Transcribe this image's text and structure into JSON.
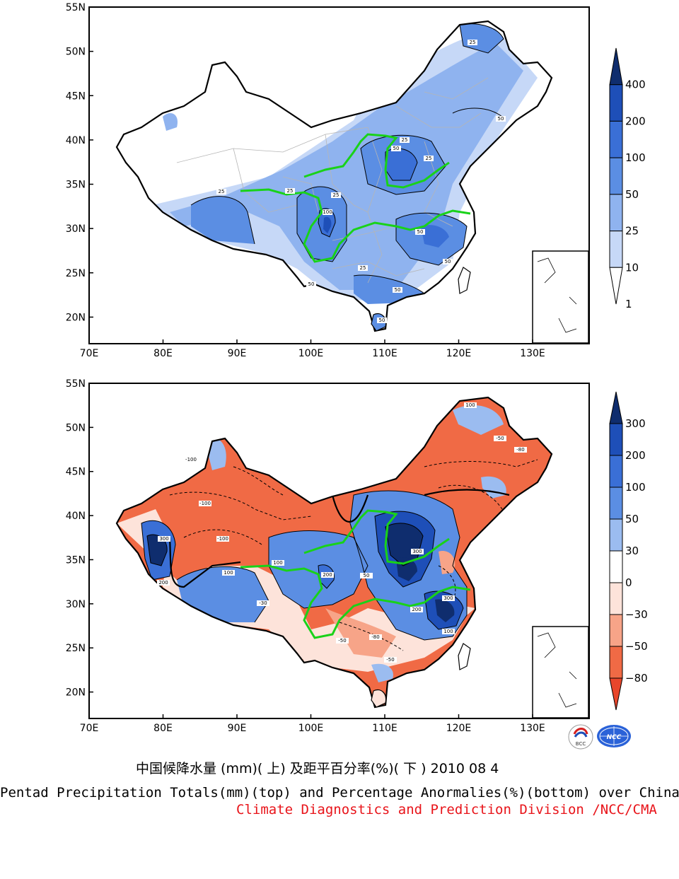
{
  "top_map": {
    "lat_labels": [
      "55N",
      "50N",
      "45N",
      "40N",
      "35N",
      "30N",
      "25N",
      "20N"
    ],
    "lon_labels": [
      "70E",
      "80E",
      "90E",
      "100E",
      "110E",
      "120E",
      "130E"
    ],
    "legend_labels": [
      "400",
      "200",
      "100",
      "50",
      "25",
      "10",
      "1"
    ],
    "legend_colors": [
      "#0f2d6e",
      "#1e4fb8",
      "#3a6fd6",
      "#5b8ee3",
      "#8fb3ef",
      "#c6d8f7",
      "#ffffff"
    ],
    "contour_labels": [
      "25",
      "25",
      "25",
      "50",
      "50",
      "25",
      "25",
      "100",
      "50",
      "25",
      "50",
      "50",
      "25",
      "50",
      "50"
    ]
  },
  "bottom_map": {
    "lat_labels": [
      "55N",
      "50N",
      "45N",
      "40N",
      "35N",
      "30N",
      "25N",
      "20N"
    ],
    "lon_labels": [
      "70E",
      "80E",
      "90E",
      "100E",
      "110E",
      "120E",
      "130E"
    ],
    "legend_labels": [
      "300",
      "200",
      "100",
      "50",
      "30",
      "0",
      "−30",
      "−50",
      "−80"
    ],
    "legend_colors": [
      "#0f2d6e",
      "#1e4fb8",
      "#3a6fd6",
      "#5b8ee3",
      "#9bbcf0",
      "#ffffff",
      "#fde3da",
      "#f7a488",
      "#f06a45",
      "#e8462b"
    ],
    "contour_labels": [
      "100",
      "-50",
      "-80",
      "-100",
      "-100",
      "-100",
      "300",
      "200",
      "100",
      "100",
      "200",
      "300",
      "200",
      "300",
      "100",
      "-50",
      "-80",
      "50",
      "-30",
      "-50"
    ]
  },
  "logos": {
    "left": "BCC",
    "right": "NCC"
  },
  "captions": {
    "chinese": "中国候降水量 (mm)( 上) 及距平百分率(%)( 下 ) 2010 08 4",
    "english": "Pentad Precipitation Totals(mm)(top) and Percentage Anormalies(%)(bottom) over China",
    "org": "Climate Diagnostics and Prediction Division /NCC/CMA"
  }
}
